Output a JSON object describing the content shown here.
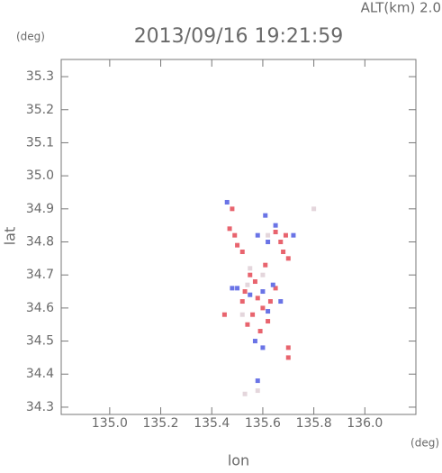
{
  "chart_data": {
    "type": "scatter",
    "title": "2013/09/16 19:21:59",
    "subtitle": "ALT(km) 2.0",
    "y_unit": "(deg)",
    "x_unit": "(deg)",
    "xlabel": "lon",
    "ylabel": "lat",
    "xlim": [
      134.81,
      136.2
    ],
    "ylim": [
      34.278,
      35.352
    ],
    "xticks": [
      {
        "value": 135,
        "label": "135.0"
      },
      135.2,
      135.4,
      135.6,
      135.8,
      {
        "value": 136,
        "label": "136.0"
      }
    ],
    "yticks": [
      34.3,
      34.4,
      34.5,
      34.6,
      34.7,
      34.8,
      34.9,
      {
        "value": 35,
        "label": "35.0"
      },
      35.1,
      35.2,
      35.3
    ],
    "grid": false,
    "series": [
      {
        "color": "#e8646e",
        "x": [
          135.47,
          135.49,
          135.5,
          135.52,
          135.65,
          135.67,
          135.68,
          135.7,
          135.69,
          135.61,
          135.55,
          135.57,
          135.53,
          135.58,
          135.6,
          135.56,
          135.52,
          135.62,
          135.59,
          135.45,
          135.7,
          135.7,
          135.48,
          135.65,
          135.63,
          135.54
        ],
        "y": [
          34.84,
          34.82,
          34.79,
          34.77,
          34.83,
          34.8,
          34.77,
          34.75,
          34.82,
          34.73,
          34.7,
          34.68,
          34.65,
          34.63,
          34.6,
          34.58,
          34.62,
          34.56,
          34.53,
          34.58,
          34.48,
          34.45,
          34.9,
          34.66,
          34.62,
          34.55
        ]
      },
      {
        "color": "#6a74e6",
        "x": [
          135.46,
          135.61,
          135.58,
          135.62,
          135.65,
          135.72,
          135.48,
          135.55,
          135.6,
          135.64,
          135.62,
          135.57,
          135.6,
          135.58,
          135.5,
          135.67
        ],
        "y": [
          34.92,
          34.88,
          34.82,
          34.8,
          34.85,
          34.82,
          34.66,
          34.64,
          34.65,
          34.67,
          34.59,
          34.5,
          34.48,
          34.38,
          34.66,
          34.62
        ]
      },
      {
        "color": "#e4d6dc",
        "x": [
          135.55,
          135.6,
          135.52,
          135.58,
          135.53,
          135.8,
          135.62,
          135.54
        ],
        "y": [
          34.72,
          34.7,
          34.58,
          34.35,
          34.34,
          34.9,
          34.82,
          34.67
        ]
      }
    ]
  }
}
